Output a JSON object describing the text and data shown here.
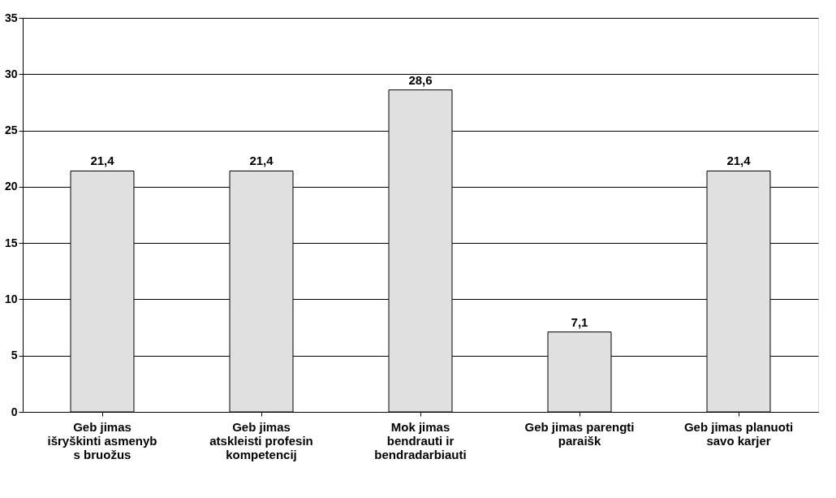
{
  "chart_data": {
    "type": "bar",
    "categories": [
      "Geb  jimas išryškinti asmenyb  s bruožus",
      "Geb  jimas atskleisti profesin  kompetencij",
      "Mok  jimas bendrauti ir bendradarbiauti",
      "Geb  jimas parengti paraišk",
      "Geb  jimas planuoti savo karjer"
    ],
    "values": [
      21.4,
      21.4,
      28.6,
      7.1,
      21.4
    ],
    "value_labels": [
      "21,4",
      "21,4",
      "28,6",
      "7,1",
      "21,4"
    ],
    "color": "#e0e0e0",
    "ylim": [
      0,
      35
    ],
    "yticks": [
      0,
      5,
      10,
      15,
      20,
      25,
      30,
      35
    ],
    "grid": "y"
  }
}
